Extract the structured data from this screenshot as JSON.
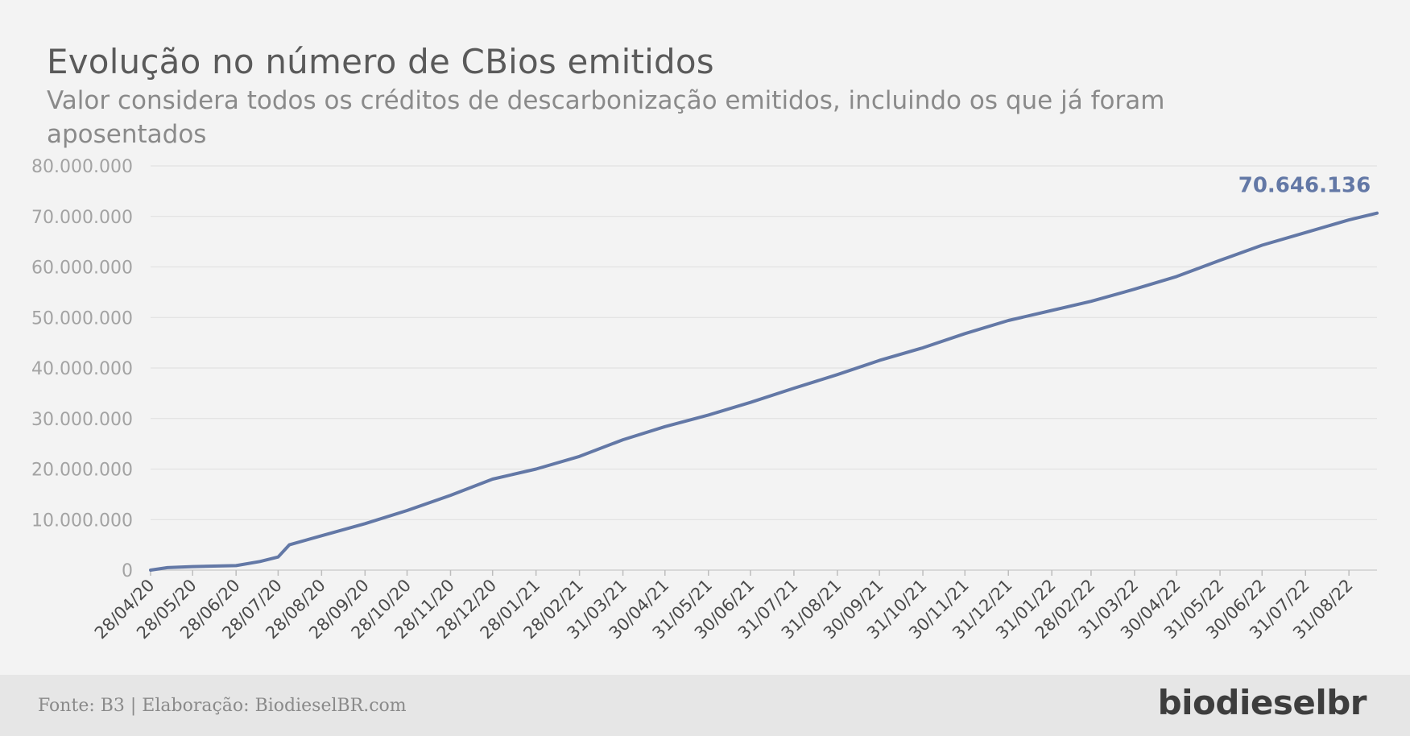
{
  "chart_data": {
    "type": "line",
    "title": "Evolução no número de CBios emitidos",
    "subtitle": "Valor considera todos os créditos de descarbonização emitidos, incluindo os que já foram aposentados",
    "xlabel": "",
    "ylabel": "",
    "ylim": [
      0,
      80000000
    ],
    "y_ticks": [
      "0",
      "10.000.000",
      "20.000.000",
      "30.000.000",
      "40.000.000",
      "50.000.000",
      "60.000.000",
      "70.000.000",
      "80.000.000"
    ],
    "x_ticks": [
      "28/04/20",
      "28/05/20",
      "28/06/20",
      "28/07/20",
      "28/08/20",
      "28/09/20",
      "28/10/20",
      "28/11/20",
      "28/12/20",
      "28/01/21",
      "28/02/21",
      "31/03/21",
      "30/04/21",
      "31/05/21",
      "30/06/21",
      "31/07/21",
      "31/08/21",
      "30/09/21",
      "31/10/21",
      "30/11/21",
      "31/12/21",
      "31/01/22",
      "28/02/22",
      "31/03/22",
      "30/04/22",
      "31/05/22",
      "30/06/22",
      "31/07/22",
      "31/08/22"
    ],
    "grid": true,
    "line_color": "#6378a6",
    "series": [
      {
        "x": [
          "28/04/20",
          "10/05/20",
          "28/05/20",
          "28/06/20",
          "15/07/20",
          "28/07/20",
          "05/08/20",
          "28/08/20",
          "28/09/20",
          "28/10/20",
          "28/11/20",
          "28/12/20",
          "28/01/21",
          "28/02/21",
          "31/03/21",
          "30/04/21",
          "31/05/21",
          "30/06/21",
          "31/07/21",
          "31/08/21",
          "30/09/21",
          "31/10/21",
          "30/11/21",
          "31/12/21",
          "31/01/22",
          "28/02/22",
          "31/03/22",
          "30/04/22",
          "31/05/22",
          "30/06/22",
          "31/07/22",
          "31/08/22",
          "20/09/22"
        ],
        "values": [
          0,
          500000,
          700000,
          900000,
          1700000,
          2600000,
          5000000,
          6800000,
          9200000,
          11800000,
          14800000,
          18000000,
          20000000,
          22500000,
          25800000,
          28400000,
          30700000,
          33200000,
          36000000,
          38700000,
          41500000,
          44000000,
          46800000,
          49400000,
          51400000,
          53200000,
          55600000,
          58100000,
          61300000,
          64300000,
          66800000,
          69300000,
          70646136
        ]
      }
    ],
    "end_label": "70.646.136"
  },
  "footer": {
    "source": "Fonte: B3 | Elaboração: BiodieselBR.com",
    "brand": "biodieselbr"
  }
}
